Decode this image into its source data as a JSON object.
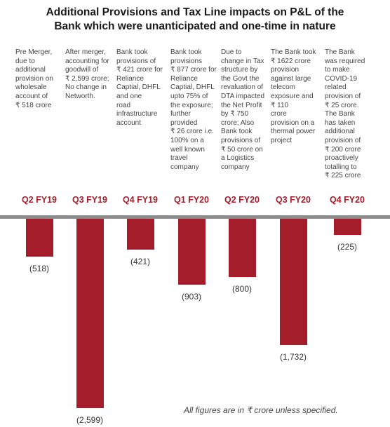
{
  "chart_data": {
    "type": "bar",
    "title": "Additional Provisions and Tax Line impacts on P&L of the Bank which were unanticipated and one-time in nature",
    "title_lines": [
      "Additional Provisions and Tax Line impacts on P&L of the",
      "Bank which were unanticipated and one-time in nature"
    ],
    "categories": [
      "Q2 FY19",
      "Q3 FY19",
      "Q4 FY19",
      "Q1 FY20",
      "Q2 FY20",
      "Q3 FY20",
      "Q4 FY20"
    ],
    "values": [
      -518,
      -2599,
      -421,
      -903,
      -800,
      -1732,
      -225
    ],
    "value_labels": [
      "(518)",
      "(2,599)",
      "(421)",
      "(903)",
      "(800)",
      "(1,732)",
      "(225)"
    ],
    "descriptions": [
      [
        "Pre Merger,",
        "due to",
        "additional",
        "provision on",
        "wholesale",
        "account of",
        "₹ 518 crore"
      ],
      [
        "After merger,",
        "accounting for",
        "goodwill of",
        "₹ 2,599 crore;",
        "No change in",
        "Networth."
      ],
      [
        "Bank took",
        "provisions of",
        "₹ 421 crore for",
        "Reliance",
        "Captial, DHFL",
        "and one",
        "road",
        "infrastructure",
        "account"
      ],
      [
        "Bank took",
        "provisions",
        "₹ 877 crore for",
        "Reliance",
        "Captial, DHFL",
        "upto 75% of",
        "the exposure;",
        "further",
        "provided",
        "₹ 26 crore i.e.",
        "100% on a",
        "well known",
        "travel",
        "company"
      ],
      [
        "Due to",
        "change in Tax",
        "structure by",
        "the Govt the",
        "revaluation of",
        "DTA impacted",
        "the Net Profit",
        "by ₹ 750",
        "crore; Also",
        "Bank took",
        "provisions of",
        "₹ 50 crore on",
        "a Logistics",
        "company"
      ],
      [
        "The Bank took",
        "₹ 1622 crore",
        "provision",
        "against large",
        "telecom",
        "exposure and",
        "₹ 110",
        "crore",
        "provision on a",
        "thermal power",
        "project"
      ],
      [
        "The Bank",
        "was required",
        "to make",
        "COVID-19",
        "related",
        "provision of",
        "₹ 25 crore.",
        "The Bank",
        "has taken",
        "additional",
        "provision of",
        "₹ 200 crore",
        "proactively",
        "totalling to",
        "₹ 225 crore"
      ]
    ],
    "footnote": "All figures are in ₹ crore unless specified.",
    "ylim": [
      -2599,
      0
    ],
    "grid": false,
    "legend": "none",
    "colors": {
      "bar": "#a31d2b",
      "label": "#a31d2b",
      "baseline": "#8c8c8c"
    }
  }
}
